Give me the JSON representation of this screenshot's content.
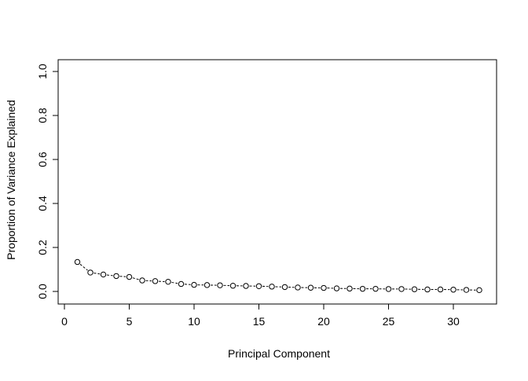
{
  "chart_data": {
    "type": "scatter",
    "title": "",
    "xlabel": "Principal Component",
    "ylabel": "Proportion of Variance Explained",
    "xlim": [
      0,
      32
    ],
    "ylim": [
      0,
      1
    ],
    "x_ticks": [
      0,
      5,
      10,
      15,
      20,
      25,
      30
    ],
    "x_tick_labels": [
      "0",
      "5",
      "10",
      "15",
      "20",
      "25",
      "30"
    ],
    "y_ticks": [
      0.0,
      0.2,
      0.4,
      0.6,
      0.8,
      1.0
    ],
    "y_tick_labels": [
      "0.0",
      "0.2",
      "0.4",
      "0.6",
      "0.8",
      "1.0"
    ],
    "grid": false,
    "marker": "open-circle",
    "connect_points": "dashed",
    "point_color": "#000000",
    "x": [
      1,
      2,
      3,
      4,
      5,
      6,
      7,
      8,
      9,
      10,
      11,
      12,
      13,
      14,
      15,
      16,
      17,
      18,
      19,
      20,
      21,
      22,
      23,
      24,
      25,
      26,
      27,
      28,
      29,
      30,
      31,
      32
    ],
    "y": [
      0.134,
      0.086,
      0.077,
      0.07,
      0.066,
      0.05,
      0.047,
      0.044,
      0.034,
      0.03,
      0.029,
      0.028,
      0.026,
      0.025,
      0.024,
      0.022,
      0.02,
      0.018,
      0.017,
      0.016,
      0.014,
      0.013,
      0.012,
      0.012,
      0.011,
      0.011,
      0.01,
      0.009,
      0.009,
      0.008,
      0.007,
      0.006
    ]
  }
}
